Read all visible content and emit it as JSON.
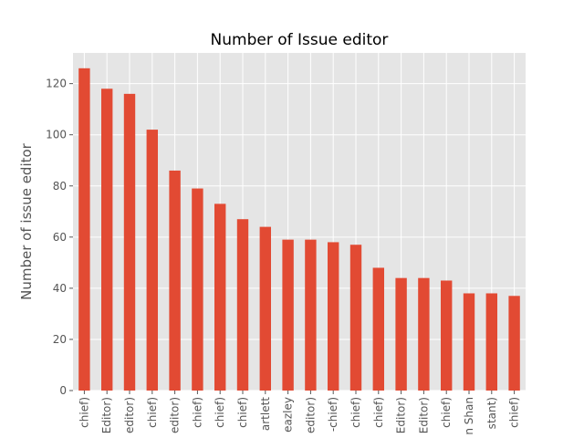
{
  "chart_data": {
    "type": "bar",
    "title": "Number of Issue editor",
    "xlabel": "",
    "ylabel": "Number of issue editor",
    "categories": [
      "chief)",
      "Editor)",
      "editor)",
      "chief)",
      "editor)",
      "chief)",
      "chief)",
      "chief)",
      "artlett",
      "eazley",
      "editor)",
      "-chief)",
      "chief)",
      "chief)",
      "Editor)",
      "Editor)",
      "chief)",
      "n Shan",
      "stant)",
      "chief)"
    ],
    "values": [
      126,
      118,
      116,
      102,
      86,
      79,
      73,
      67,
      64,
      59,
      59,
      58,
      57,
      48,
      44,
      44,
      43,
      38,
      38,
      37
    ],
    "yticks": [
      0,
      20,
      40,
      60,
      80,
      100,
      120
    ],
    "ylim": [
      0,
      132
    ],
    "grid": true,
    "colors": {
      "bar": "#E24A33",
      "plot_bg": "#E5E5E5",
      "grid": "#FFFFFF"
    }
  }
}
